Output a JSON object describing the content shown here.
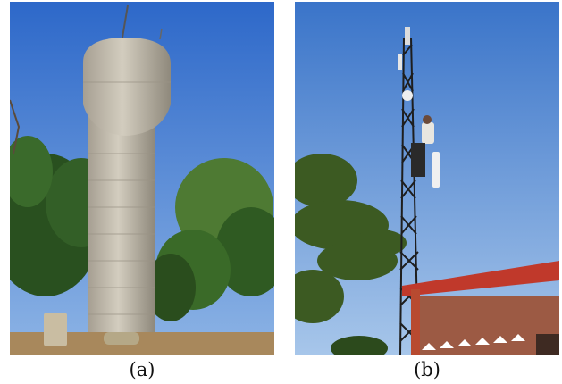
{
  "figure": {
    "panels": [
      {
        "caption": "(a)",
        "subject": "water-tower-photo"
      },
      {
        "caption": "(b)",
        "subject": "technician-on-antenna-mast-photo"
      }
    ]
  },
  "colors": {
    "sky_top": "#2f6fd0",
    "sky_bottom": "#8fb6e6",
    "concrete": "#bfb9ac",
    "foliage": "#2e5a22",
    "roof": "#c0392b",
    "brick": "#9c5a44"
  }
}
